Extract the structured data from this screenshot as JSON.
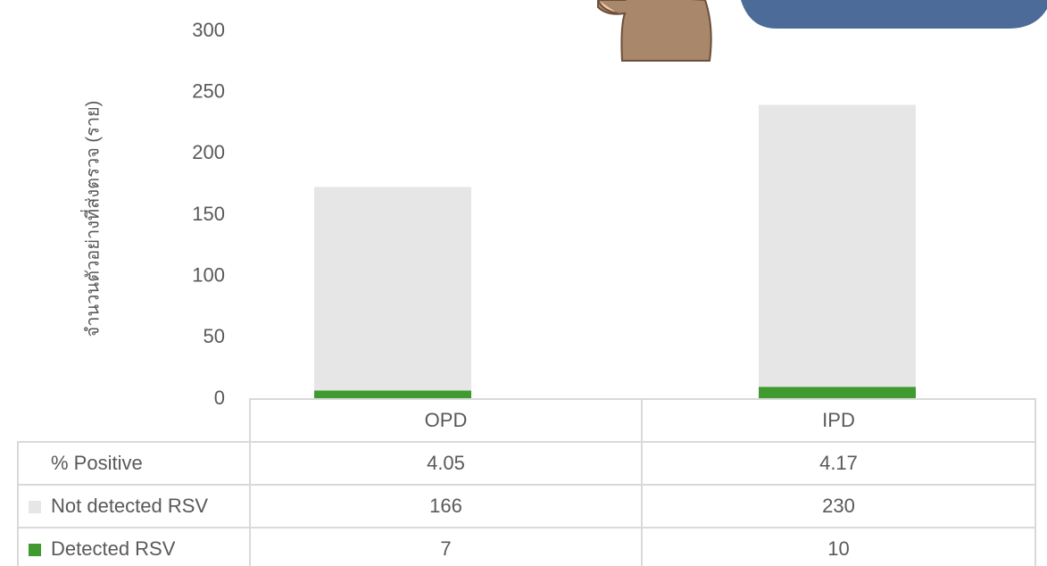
{
  "chart_data": {
    "type": "stacked_bar",
    "y_label": "จำนวนตัวอย่างที่ส่งตรวจ (ราย)",
    "categories": [
      "OPD",
      "IPD"
    ],
    "series": [
      {
        "name": "Detected RSV",
        "color": "#3f9b2f",
        "values": [
          7,
          10
        ]
      },
      {
        "name": "Not detected RSV",
        "color": "#e6e6e6",
        "values": [
          166,
          230
        ]
      }
    ],
    "positive_rate": {
      "name": "% Positive",
      "values": [
        4.05,
        4.17
      ]
    },
    "ylim": [
      0,
      300
    ],
    "yticks": [
      0,
      50,
      100,
      150,
      200,
      250,
      300
    ],
    "grid": false
  }
}
